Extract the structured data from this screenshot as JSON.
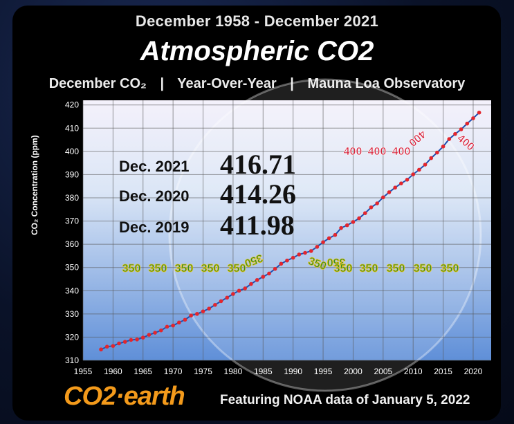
{
  "header": {
    "date_range": "December 1958 - December 2021",
    "title": "Atmospheric CO2",
    "sub_left": "December CO₂",
    "sub_mid": "Year-Over-Year",
    "sub_right": "Mauna Loa Observatory",
    "separator": "|"
  },
  "readings": [
    {
      "label": "Dec. 2021",
      "value": "416.71"
    },
    {
      "label": "Dec. 2020",
      "value": "414.26"
    },
    {
      "label": "Dec. 2019",
      "value": "411.98"
    }
  ],
  "milestones": {
    "level_350": "350",
    "level_400": "400"
  },
  "footer": {
    "logo": "CO2·earth",
    "text": "Featuring NOAA data of January 5, 2022"
  },
  "colors": {
    "series_line": "#1f4fb0",
    "series_dot": "#e3262d",
    "label_350": "#2c8a2c",
    "label_350_outline": "#f2c512",
    "label_400": "#d7223c",
    "brand_orange": "#f39a1b"
  },
  "chart_data": {
    "type": "line",
    "title": "Atmospheric CO2",
    "xlabel": "",
    "ylabel": "CO₂ Concentration (ppm)",
    "xlim": [
      1955,
      2023
    ],
    "ylim": [
      310,
      422
    ],
    "x_ticks": [
      1955,
      1960,
      1965,
      1970,
      1975,
      1980,
      1985,
      1990,
      1995,
      2000,
      2005,
      2010,
      2015,
      2020
    ],
    "y_ticks": [
      310,
      320,
      330,
      340,
      350,
      360,
      370,
      380,
      390,
      400,
      410,
      420
    ],
    "grid": true,
    "series": [
      {
        "name": "December CO2",
        "x": [
          1958,
          1959,
          1960,
          1961,
          1962,
          1963,
          1964,
          1965,
          1966,
          1967,
          1968,
          1969,
          1970,
          1971,
          1972,
          1973,
          1974,
          1975,
          1976,
          1977,
          1978,
          1979,
          1980,
          1981,
          1982,
          1983,
          1984,
          1985,
          1986,
          1987,
          1988,
          1989,
          1990,
          1991,
          1992,
          1993,
          1994,
          1995,
          1996,
          1997,
          1998,
          1999,
          2000,
          2001,
          2002,
          2003,
          2004,
          2005,
          2006,
          2007,
          2008,
          2009,
          2010,
          2011,
          2012,
          2013,
          2014,
          2015,
          2016,
          2017,
          2018,
          2019,
          2020,
          2021
        ],
        "values": [
          314.7,
          315.9,
          316.2,
          317.3,
          318.0,
          318.8,
          319.0,
          319.8,
          321.0,
          321.9,
          322.9,
          324.5,
          325.0,
          326.3,
          327.5,
          329.3,
          330.0,
          331.1,
          332.3,
          333.9,
          335.5,
          337.0,
          338.6,
          340.0,
          341.0,
          342.9,
          344.6,
          346.0,
          347.4,
          349.4,
          351.6,
          353.0,
          354.2,
          355.6,
          356.3,
          357.1,
          358.9,
          360.9,
          362.6,
          364.0,
          367.0,
          368.2,
          369.6,
          371.2,
          373.4,
          375.9,
          377.6,
          380.2,
          382.4,
          384.4,
          386.2,
          387.8,
          390.1,
          392.1,
          394.3,
          397.1,
          399.5,
          402.1,
          405.3,
          407.5,
          409.5,
          411.98,
          414.26,
          416.71
        ]
      }
    ],
    "annotations": [
      {
        "text": "350",
        "kind": "350"
      },
      {
        "text": "400",
        "kind": "400"
      }
    ]
  }
}
